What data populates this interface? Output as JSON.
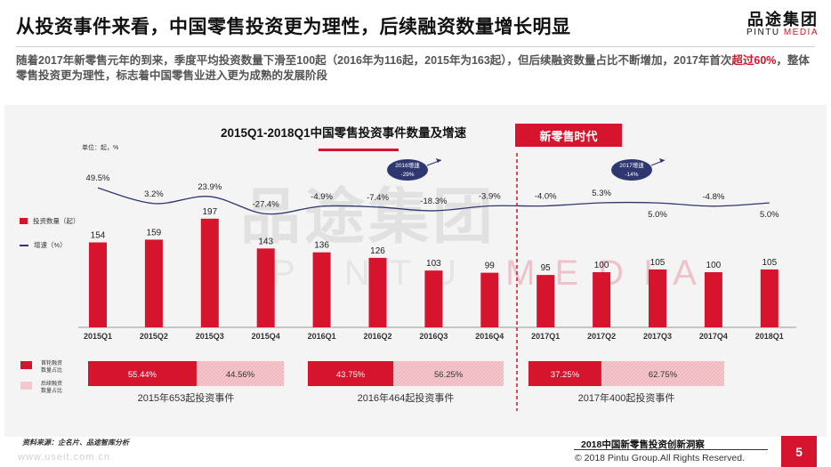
{
  "header": {
    "title": "从投资事件来看，中国零售投资更为理性，后续融资数量增长明显",
    "logo_cn": "品途集团",
    "logo_en_a": "PINTU ",
    "logo_en_b": "MEDIA"
  },
  "subtitle": {
    "part1": "随着2017年新零售元年的到来，季度平均投资数量下滑至100起（2016年为116起，2015年为163起），但后续融资数量占比不断增加，2017年首次",
    "highlight": "超过60%",
    "part2": "，整体零售投资更为理性，标志着中国零售业进入更为成熟的发展阶段"
  },
  "chart": {
    "title": "2015Q1-2018Q1中国零售投资事件数量及增速",
    "unit": "单位：起，%",
    "era_tag": "新零售时代",
    "legend_bar": "投资数量（起）",
    "legend_line": "增速（%）",
    "bubble_2016": [
      "2016增速",
      "-29%"
    ],
    "bubble_2017": [
      "2017增速",
      "-14%"
    ],
    "share_legend_first": [
      "首轮融资",
      "数量占比"
    ],
    "share_legend_follow": [
      "后续融资",
      "数量占比"
    ],
    "watermark_cn": "品途集团",
    "watermark_en_a": "PINTU ",
    "watermark_en_b": "MEDIA"
  },
  "chart_data": {
    "type": "bar",
    "title": "2015Q1-2018Q1中国零售投资事件数量及增速",
    "categories": [
      "2015Q1",
      "2015Q2",
      "2015Q3",
      "2015Q4",
      "2016Q1",
      "2016Q2",
      "2016Q3",
      "2016Q4",
      "2017Q1",
      "2017Q2",
      "2017Q3",
      "2017Q4",
      "2018Q1"
    ],
    "series": [
      {
        "name": "投资数量（起）",
        "type": "bar",
        "values": [
          154,
          159,
          197,
          143,
          136,
          126,
          103,
          99,
          95,
          100,
          105,
          100,
          105
        ],
        "color": "#d6142d"
      },
      {
        "name": "增速（%）",
        "type": "line",
        "values": [
          49.5,
          3.2,
          23.9,
          -27.4,
          -4.9,
          -7.4,
          -18.3,
          -3.9,
          -4.0,
          5.3,
          5.0,
          -4.8,
          5.0
        ],
        "labels": [
          "49.5%",
          "3.2%",
          "23.9%",
          "-27.4%",
          "-4.9%",
          "-7.4%",
          "-18.3%",
          "-3.9%",
          "-4.0%",
          "5.3%",
          "5.0%",
          "-4.8%",
          "5.0%"
        ],
        "color": "#2f3770"
      }
    ],
    "annual_growth": [
      {
        "period": "2016",
        "label": "2016增速",
        "value": "-29%"
      },
      {
        "period": "2017",
        "label": "2017增速",
        "value": "-14%"
      }
    ],
    "financing_share": [
      {
        "year": "2015",
        "first_round": 55.44,
        "follow_on": 44.56,
        "first_label": "55.44%",
        "follow_label": "44.56%",
        "caption": "2015年653起投资事件"
      },
      {
        "year": "2016",
        "first_round": 43.75,
        "follow_on": 56.25,
        "first_label": "43.75%",
        "follow_label": "56.25%",
        "caption": "2016年464起投资事件"
      },
      {
        "year": "2017",
        "first_round": 37.25,
        "follow_on": 62.75,
        "first_label": "37.25%",
        "follow_label": "62.75%",
        "caption": "2017年400起投资事件"
      }
    ],
    "colors": {
      "bar": "#d6142d",
      "line": "#2f3770",
      "follow_fill": "#f4c9ce"
    }
  },
  "footer": {
    "source": "资料来源：企名片、品途智库分析",
    "report": "2018中国新零售投资创新洞察",
    "copyright": "© 2018 Pintu Group.All Rights Reserved.",
    "page": "5",
    "web_watermark": "www.useit.com.cn"
  }
}
